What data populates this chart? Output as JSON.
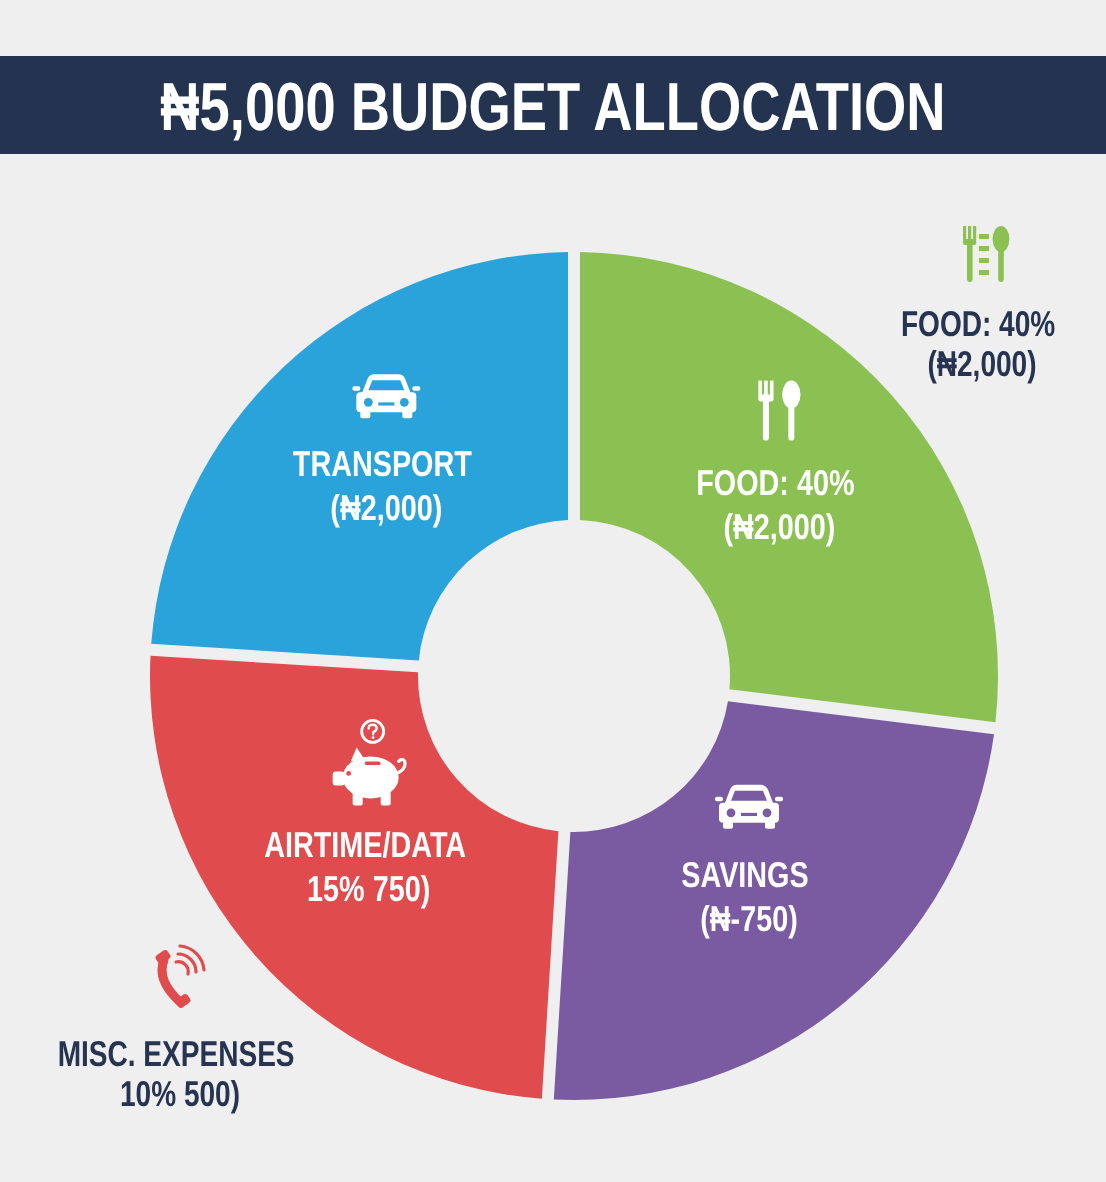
{
  "chart_data": {
    "type": "donut",
    "title": "₦5,000 BUDGET ALLOCATION",
    "categories": [
      "FOOD: 40% (₦2,000)",
      "SAVINGS (₦-750)",
      "AIRTIME/DATA 15% 750)",
      "TRANSPORT (₦2,000)"
    ],
    "values": [
      27,
      24,
      25,
      24
    ],
    "colors": [
      "#8bc152",
      "#7a5ba1",
      "#e04b4d",
      "#29a3d9"
    ],
    "annotations": [
      "FOOD: 40% (₦2,000)",
      "MISC. EXPENSES 10% 500)"
    ]
  }
}
